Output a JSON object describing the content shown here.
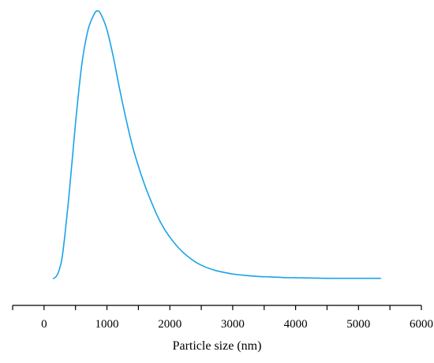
{
  "colors": {
    "series": "#1aa3e8",
    "axis": "#000000",
    "background": "#ffffff"
  },
  "chart_data": {
    "type": "line",
    "title": "",
    "xlabel": "Particle size (nm)",
    "ylabel": "",
    "xlim": [
      -500,
      6000
    ],
    "ylim": [
      0,
      1
    ],
    "grid": false,
    "y_axis_visible": false,
    "x_ticks": [
      0,
      1000,
      2000,
      3000,
      4000,
      5000,
      6000
    ],
    "x_tick_labels": [
      "0",
      "1000",
      "2000",
      "3000",
      "4000",
      "5000",
      "6000"
    ],
    "series": [
      {
        "x": [
          150,
          200,
          250,
          300,
          400,
          500,
          600,
          700,
          800,
          850,
          900,
          1000,
          1100,
          1200,
          1300,
          1400,
          1500,
          1600,
          1700,
          1800,
          1900,
          2000,
          2100,
          2200,
          2300,
          2400,
          2500,
          2600,
          2700,
          2800,
          3000,
          3200,
          3400,
          3600,
          3800,
          4000,
          4500,
          5000,
          5350
        ],
        "values": [
          0.0,
          0.01,
          0.04,
          0.1,
          0.32,
          0.58,
          0.8,
          0.93,
          0.99,
          1.0,
          0.99,
          0.93,
          0.83,
          0.71,
          0.6,
          0.5,
          0.42,
          0.35,
          0.29,
          0.235,
          0.19,
          0.155,
          0.125,
          0.1,
          0.08,
          0.063,
          0.05,
          0.04,
          0.032,
          0.026,
          0.017,
          0.012,
          0.008,
          0.006,
          0.004,
          0.003,
          0.001,
          0.001,
          0.001
        ]
      }
    ]
  }
}
